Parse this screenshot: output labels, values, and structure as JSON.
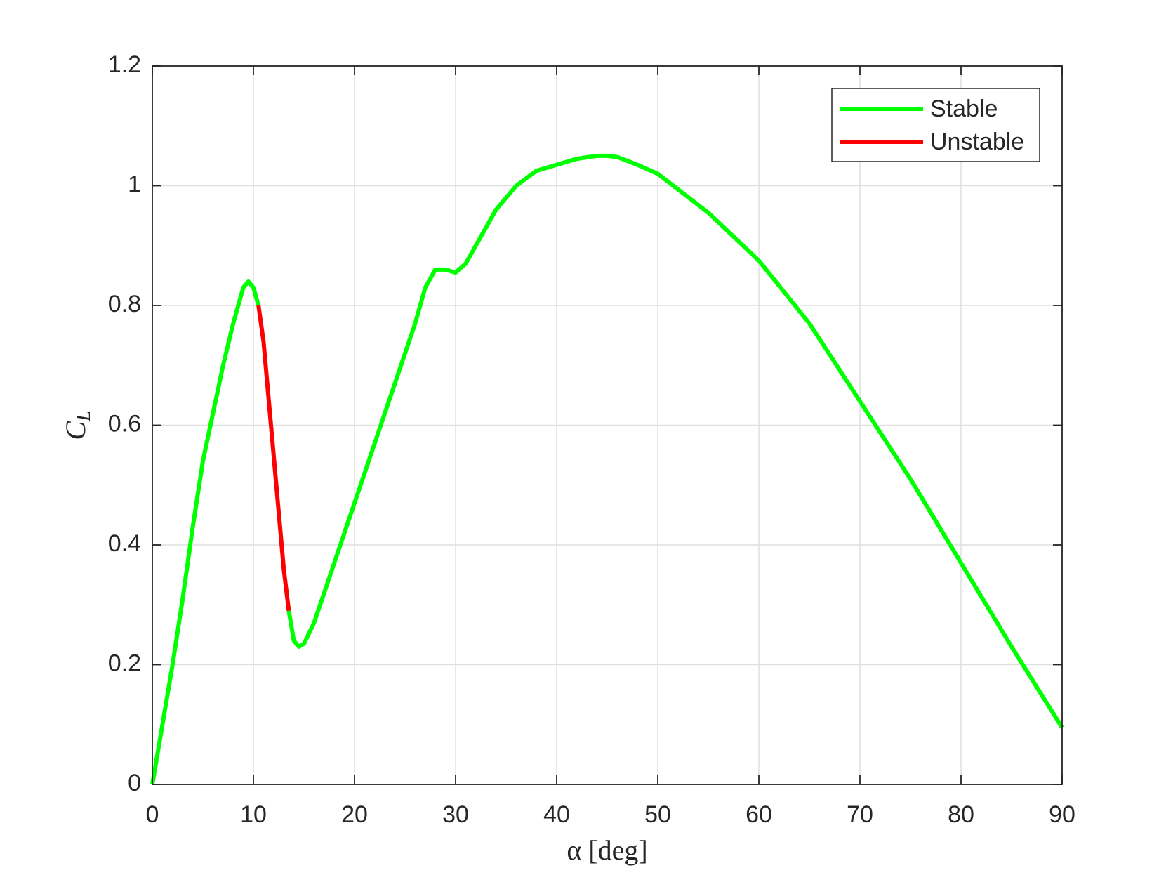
{
  "chart_data": {
    "type": "line",
    "xlabel": "α [deg]",
    "ylabel": {
      "text": "C",
      "subscript": "L"
    },
    "x": [
      0,
      1,
      2,
      3,
      4,
      5,
      6,
      7,
      8,
      9,
      9.5,
      10,
      10.5,
      11,
      12,
      13,
      13.5,
      14,
      14.5,
      15,
      16,
      18,
      20,
      22,
      24,
      26,
      27,
      28,
      29,
      30,
      31,
      32,
      34,
      36,
      38,
      40,
      42,
      44,
      45,
      46,
      48,
      50,
      55,
      60,
      65,
      70,
      75,
      80,
      85,
      90
    ],
    "series": [
      {
        "name": "Stable",
        "color": "#00ff00",
        "values": [
          0,
          0.1,
          0.2,
          0.31,
          0.43,
          0.54,
          0.62,
          0.7,
          0.77,
          0.83,
          0.84,
          0.83,
          0.8,
          null,
          null,
          null,
          0.29,
          0.24,
          0.23,
          0.235,
          0.27,
          0.37,
          0.47,
          0.57,
          0.67,
          0.77,
          0.83,
          0.86,
          0.86,
          0.855,
          0.87,
          0.9,
          0.96,
          1.0,
          1.025,
          1.035,
          1.045,
          1.05,
          1.05,
          1.048,
          1.035,
          1.02,
          0.955,
          0.875,
          0.77,
          0.64,
          0.51,
          0.37,
          0.23,
          0.095
        ]
      },
      {
        "name": "Unstable",
        "color": "#ff0000",
        "values": [
          null,
          null,
          null,
          null,
          null,
          null,
          null,
          null,
          null,
          null,
          null,
          null,
          0.8,
          0.74,
          0.55,
          0.36,
          0.29,
          null,
          null,
          null,
          null,
          null,
          null,
          null,
          null,
          null,
          null,
          null,
          null,
          null,
          null,
          null,
          null,
          null,
          null,
          null,
          null,
          null,
          null,
          null,
          null,
          null,
          null,
          null,
          null,
          null,
          null,
          null,
          null,
          null
        ]
      }
    ],
    "xlim": [
      0,
      90
    ],
    "xticks": [
      0,
      10,
      20,
      30,
      40,
      50,
      60,
      70,
      80,
      90
    ],
    "ylim": [
      0,
      1.2
    ],
    "yticks": [
      0,
      0.2,
      0.4,
      0.6,
      0.8,
      1,
      1.2
    ],
    "grid": true,
    "legend": "northeast"
  }
}
